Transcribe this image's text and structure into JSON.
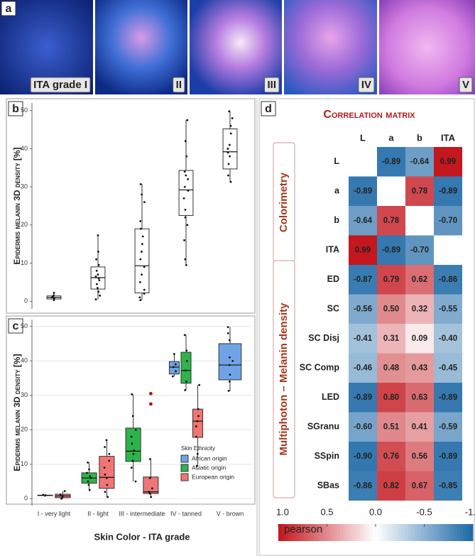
{
  "panel_labels": [
    "a",
    "b",
    "c",
    "d"
  ],
  "images": [
    "ITA grade I",
    "II",
    "III",
    "IV",
    "V"
  ],
  "chart_data": [
    {
      "type": "box",
      "ylabel": "Epidermis melanin 3D density [%]",
      "categories": [
        null,
        null,
        null,
        null,
        null
      ],
      "color": "#ffffff",
      "ylim": [
        -2,
        52
      ],
      "yticks": [
        0,
        10,
        20,
        30,
        40,
        50
      ],
      "grid": false,
      "boxes": [
        {
          "min": 0.3,
          "q1": 0.6,
          "median": 1.0,
          "q3": 1.4,
          "max": 2.2,
          "points": [
            0.3,
            0.8,
            1.0,
            1.2,
            1.5,
            2.2
          ]
        },
        {
          "min": 0.5,
          "q1": 3.2,
          "median": 6.2,
          "q3": 9,
          "max": 17.3,
          "points": [
            0.5,
            1.5,
            2.5,
            3.5,
            4.5,
            5.5,
            6,
            6.5,
            7,
            8,
            9.5,
            11,
            13,
            17.3
          ]
        },
        {
          "min": 0.3,
          "q1": 2.2,
          "median": 9.3,
          "q3": 19,
          "max": 30.7,
          "points": [
            0.3,
            1,
            2,
            3,
            5,
            7,
            9,
            11,
            13,
            15,
            17,
            19,
            21,
            26,
            28,
            30.7
          ]
        },
        {
          "min": 9.5,
          "q1": 22.5,
          "median": 29.2,
          "q3": 34.3,
          "max": 47.5,
          "points": [
            9.5,
            11,
            16,
            20,
            22,
            24,
            27,
            29,
            30,
            32,
            33,
            34,
            38,
            42,
            47.5
          ]
        },
        {
          "min": 31.3,
          "q1": 34.7,
          "median": 39.2,
          "q3": 45.2,
          "max": 49.8,
          "points": [
            31.3,
            33,
            36,
            38,
            39,
            40,
            41,
            44,
            46,
            48,
            49.8
          ]
        }
      ]
    },
    {
      "type": "box",
      "ylabel": "Epidermis melanin 3D density [%]",
      "xlabel": "Skin Color - ITA grade",
      "categories": [
        "I - very light",
        "II - light",
        "III - intermediate",
        "IV - tanned",
        "V - brown"
      ],
      "ylim": [
        -2,
        52
      ],
      "yticks": [
        0,
        10,
        20,
        30,
        40,
        50
      ],
      "grid": true,
      "legend_title": "Skin Ethnicity",
      "legend": "bottom-right",
      "series": [
        {
          "name": "African origin",
          "color": "#6fa3e6",
          "boxes": [
            null,
            null,
            null,
            {
              "min": 35.5,
              "q1": 36.2,
              "median": 38.2,
              "q3": 39.8,
              "max": 42,
              "points": [
                35.5,
                37,
                38.2,
                39,
                42
              ]
            },
            {
              "min": 31.3,
              "q1": 34.5,
              "median": 38.8,
              "q3": 45,
              "max": 49.8,
              "points": [
                31.3,
                34,
                36,
                38.8,
                40,
                41,
                46,
                48,
                49.8
              ]
            }
          ]
        },
        {
          "name": "Asiatic origin",
          "color": "#2db34a",
          "boxes": [
            {
              "min": 0.8,
              "q1": 0.9,
              "median": 1.0,
              "q3": 1.0,
              "max": 1.1,
              "points": [
                0.9,
                1.0,
                1.1
              ]
            },
            {
              "min": 2.5,
              "q1": 4.5,
              "median": 6,
              "q3": 7.5,
              "max": 10.5,
              "points": [
                2.5,
                4,
                5,
                6,
                6.5,
                7.5,
                8.5,
                10.5
              ]
            },
            {
              "min": 5,
              "q1": 10.8,
              "median": 13.8,
              "q3": 20.5,
              "max": 30.3,
              "points": [
                5,
                9,
                11,
                13,
                14,
                16,
                18,
                20,
                24,
                30.3
              ]
            },
            {
              "min": 31.5,
              "q1": 33.5,
              "median": 37.2,
              "q3": 42.5,
              "max": 47.5,
              "points": [
                31.5,
                34,
                37.2,
                40,
                43,
                47.5
              ]
            },
            null
          ]
        },
        {
          "name": "European origin",
          "color": "#f07575",
          "boxes": [
            {
              "min": 0,
              "q1": 0.3,
              "median": 0.8,
              "q3": 1.3,
              "max": 2.2,
              "points": [
                0,
                0.5,
                0.8,
                1.2,
                2.2
              ]
            },
            {
              "min": 0.5,
              "q1": 3,
              "median": 6.2,
              "q3": 12.3,
              "max": 17,
              "points": [
                0.5,
                2,
                4,
                6,
                7,
                9,
                11,
                13,
                15,
                17
              ]
            },
            {
              "min": 0.5,
              "q1": 1.5,
              "median": 2,
              "q3": 6.3,
              "max": 11.5,
              "points": [
                0.5,
                1.5,
                2,
                3,
                6,
                11.5
              ],
              "outliers": [
                27.5,
                30.5
              ]
            },
            {
              "min": 9.5,
              "q1": 17.8,
              "median": 22.5,
              "q3": 26,
              "max": 33,
              "points": [
                9.5,
                13,
                18,
                21,
                22.5,
                24,
                26,
                33
              ]
            },
            null
          ]
        }
      ]
    },
    {
      "type": "heatmap",
      "title": "Correlation matrix",
      "columns": [
        "L",
        "a",
        "b",
        "ITA"
      ],
      "rows": [
        "L",
        "a",
        "b",
        "ITA",
        "ED",
        "SC",
        "SC Disj",
        "SC Comp",
        "LED",
        "SGranu",
        "SSpin",
        "SBas"
      ],
      "row_groups": [
        {
          "label": "Colorimetry",
          "rows": [
            0,
            3
          ]
        },
        {
          "label": "Multiphoton – Melanin density",
          "rows": [
            4,
            11
          ]
        }
      ],
      "values": [
        [
          null,
          -0.89,
          -0.64,
          0.99
        ],
        [
          -0.89,
          null,
          0.78,
          -0.89
        ],
        [
          -0.64,
          0.78,
          null,
          -0.7
        ],
        [
          0.99,
          -0.89,
          -0.7,
          null
        ],
        [
          -0.87,
          0.79,
          0.62,
          -0.86
        ],
        [
          -0.56,
          0.5,
          0.32,
          -0.55
        ],
        [
          -0.41,
          0.31,
          0.09,
          -0.4
        ],
        [
          -0.46,
          0.48,
          0.43,
          -0.45
        ],
        [
          -0.89,
          0.8,
          0.63,
          -0.89
        ],
        [
          -0.6,
          0.51,
          0.41,
          -0.59
        ],
        [
          -0.9,
          0.76,
          0.56,
          -0.89
        ],
        [
          -0.86,
          0.82,
          0.67,
          -0.85
        ]
      ],
      "value_labels": [
        [
          null,
          "-0.89",
          "-0.64",
          "0.99"
        ],
        [
          "-0.89",
          null,
          "0.78",
          "-0.89"
        ],
        [
          "-0.64",
          "0.78",
          null,
          "-0.70"
        ],
        [
          "0.99",
          "-0.89",
          "-0.70",
          null
        ],
        [
          "-0.87",
          "0.79",
          "0.62",
          "-0.86"
        ],
        [
          "-0.56",
          "0.50",
          "0.32",
          "-0.55"
        ],
        [
          "-0.41",
          "0.31",
          "0.09",
          "-0.40"
        ],
        [
          "-0.46",
          "0.48",
          "0.43",
          "-0.45"
        ],
        [
          "-0.89",
          "0.80",
          "0.63",
          "-0.89"
        ],
        [
          "-0.60",
          "0.51",
          "0.41",
          "-0.59"
        ],
        [
          "-0.90",
          "0.76",
          "0.56",
          "-0.89"
        ],
        [
          "-0.86",
          "0.82",
          "0.67",
          "-0.85"
        ]
      ],
      "colorbar_label": "pearson",
      "clim": [
        1,
        -1
      ],
      "cticks": [
        {
          "value": 1,
          "label": "1.0"
        },
        0.5,
        {
          "value": 0,
          "label": "0.0"
        },
        -0.5,
        {
          "value": -1,
          "label": "-1.0"
        }
      ],
      "colors": {
        "high": "#c3151c",
        "mid": "#ffffff",
        "low": "#1c68a6"
      }
    }
  ]
}
